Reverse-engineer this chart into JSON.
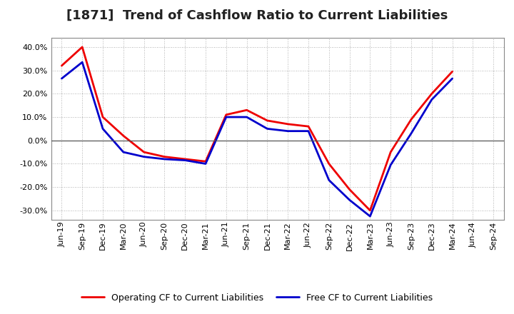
{
  "title": "[1871]  Trend of Cashflow Ratio to Current Liabilities",
  "x_labels": [
    "Jun-19",
    "Sep-19",
    "Dec-19",
    "Mar-20",
    "Jun-20",
    "Sep-20",
    "Dec-20",
    "Mar-21",
    "Jun-21",
    "Sep-21",
    "Dec-21",
    "Mar-22",
    "Jun-22",
    "Sep-22",
    "Dec-22",
    "Mar-23",
    "Jun-23",
    "Sep-23",
    "Dec-23",
    "Mar-24",
    "Jun-24",
    "Sep-24"
  ],
  "operating_cf": [
    0.32,
    0.4,
    0.1,
    0.02,
    -0.05,
    -0.07,
    -0.08,
    -0.09,
    0.11,
    0.13,
    0.085,
    0.07,
    0.06,
    -0.1,
    -0.21,
    -0.3,
    -0.05,
    0.09,
    0.2,
    0.295,
    null,
    null
  ],
  "free_cf": [
    0.265,
    0.335,
    0.05,
    -0.05,
    -0.07,
    -0.08,
    -0.085,
    -0.1,
    0.1,
    0.1,
    0.05,
    0.04,
    0.04,
    -0.17,
    -0.255,
    -0.325,
    -0.105,
    0.03,
    0.175,
    0.265,
    null,
    null
  ],
  "operating_color": "#EE0000",
  "free_color": "#0000CC",
  "ylim": [
    -0.34,
    0.44
  ],
  "yticks": [
    -0.3,
    -0.2,
    -0.1,
    0.0,
    0.1,
    0.2,
    0.3,
    0.4
  ],
  "bg_color": "#FFFFFF",
  "plot_bg_color": "#FFFFFF",
  "grid_color": "#999999",
  "legend_operating": "Operating CF to Current Liabilities",
  "legend_free": "Free CF to Current Liabilities",
  "title_fontsize": 13,
  "tick_fontsize": 8,
  "legend_fontsize": 9,
  "linewidth": 2.0
}
